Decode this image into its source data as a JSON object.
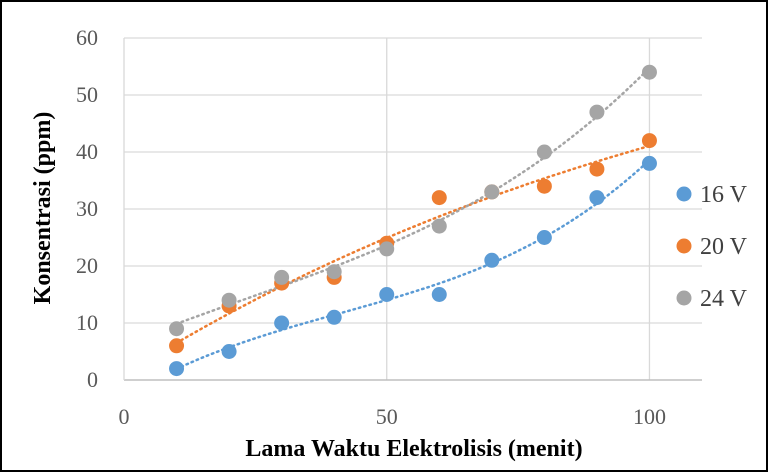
{
  "chart_data": {
    "type": "scatter",
    "title": "",
    "xlabel": "Lama Waktu Elektrolisis  (menit)",
    "ylabel": "Konsentrasi (ppm)",
    "xlim": [
      0,
      110
    ],
    "ylim": [
      0,
      60
    ],
    "x_ticks": [
      "0",
      "50",
      "100"
    ],
    "y_ticks": [
      "0",
      "10",
      "20",
      "30",
      "40",
      "50",
      "60"
    ],
    "grid": true,
    "legend_position": "right",
    "trendline": "polynomial, dotted",
    "series": [
      {
        "name": "16 V",
        "color": "#5B9BD5",
        "x": [
          10,
          20,
          30,
          40,
          50,
          60,
          70,
          80,
          90,
          100
        ],
        "y": [
          2,
          5,
          10,
          11,
          15,
          15,
          21,
          25,
          32,
          38
        ]
      },
      {
        "name": "20 V",
        "color": "#ED7D31",
        "x": [
          10,
          20,
          30,
          40,
          50,
          60,
          70,
          80,
          90,
          100
        ],
        "y": [
          6,
          13,
          17,
          18,
          24,
          32,
          33,
          34,
          37,
          42
        ]
      },
      {
        "name": "24 V",
        "color": "#A5A5A5",
        "x": [
          10,
          20,
          30,
          40,
          50,
          60,
          70,
          80,
          90,
          100
        ],
        "y": [
          9,
          14,
          18,
          19,
          23,
          27,
          33,
          40,
          47,
          54
        ]
      }
    ]
  }
}
